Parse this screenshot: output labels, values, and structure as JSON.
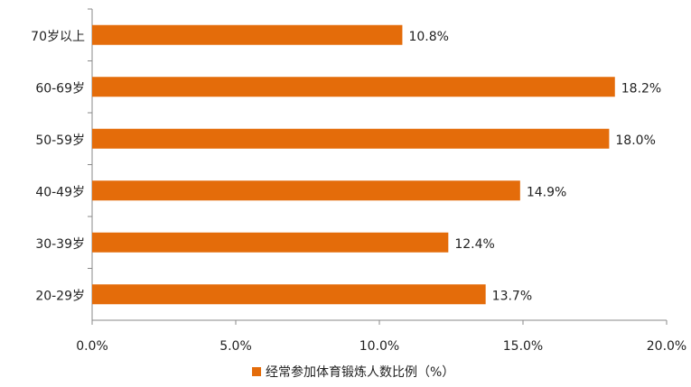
{
  "chart_data": {
    "type": "bar",
    "orientation": "horizontal",
    "categories": [
      "70岁以上",
      "60-69岁",
      "50-59岁",
      "40-49岁",
      "30-39岁",
      "20-29岁"
    ],
    "series": [
      {
        "name": "经常参加体育锻炼人数比例（%）",
        "color": "#e46c0a",
        "values": [
          10.8,
          18.2,
          18.0,
          14.9,
          12.4,
          13.7
        ],
        "value_labels": [
          "10.8%",
          "18.2%",
          "18.0%",
          "14.9%",
          "12.4%",
          "13.7%"
        ]
      }
    ],
    "xlim": [
      0,
      20
    ],
    "xticks": [
      {
        "value": 0,
        "label": "0.0%"
      },
      {
        "value": 5,
        "label": "5.0%"
      },
      {
        "value": 10,
        "label": "10.0%"
      },
      {
        "value": 15,
        "label": "15.0%"
      },
      {
        "value": 20,
        "label": "20.0%"
      }
    ],
    "grid": false,
    "legend": "bottom"
  }
}
